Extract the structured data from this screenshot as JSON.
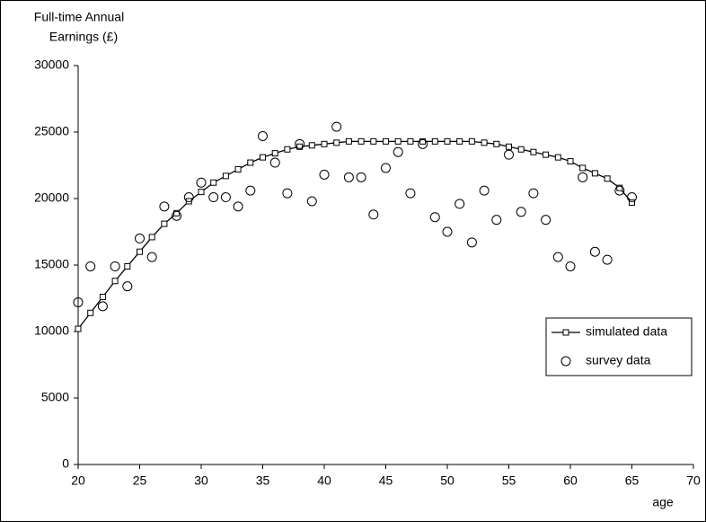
{
  "chart_data": {
    "type": "line_scatter",
    "y_label": [
      "Full-time Annual",
      "Earnings (£)"
    ],
    "x_label": "age",
    "x": [
      20,
      21,
      22,
      23,
      24,
      25,
      26,
      27,
      28,
      29,
      30,
      31,
      32,
      33,
      34,
      35,
      36,
      37,
      38,
      39,
      40,
      41,
      42,
      43,
      44,
      45,
      46,
      47,
      48,
      49,
      50,
      51,
      52,
      53,
      54,
      55,
      56,
      57,
      58,
      59,
      60,
      61,
      62,
      63,
      64,
      65
    ],
    "series": [
      {
        "name": "simulated data",
        "kind": "line",
        "marker": "square",
        "color": "#000000",
        "values": [
          10200,
          11400,
          12600,
          13800,
          14900,
          16000,
          17100,
          18100,
          18900,
          19800,
          20500,
          21200,
          21700,
          22200,
          22700,
          23100,
          23400,
          23700,
          23900,
          24000,
          24100,
          24200,
          24300,
          24300,
          24300,
          24300,
          24300,
          24300,
          24300,
          24300,
          24300,
          24300,
          24300,
          24200,
          24100,
          23900,
          23700,
          23500,
          23300,
          23100,
          22800,
          22300,
          21900,
          21500,
          20800,
          19700
        ]
      },
      {
        "name": "survey data",
        "kind": "scatter",
        "marker": "circle",
        "color": "#000000",
        "values": [
          12200,
          14900,
          11900,
          14900,
          13400,
          17000,
          15600,
          19400,
          18700,
          20100,
          21200,
          20100,
          20100,
          19400,
          20600,
          24700,
          22700,
          20400,
          24100,
          19800,
          21800,
          25400,
          21600,
          21600,
          18800,
          22300,
          23500,
          20400,
          24100,
          18600,
          17500,
          19600,
          16700,
          20600,
          18400,
          23300,
          19000,
          20400,
          18400,
          15600,
          14900,
          21600,
          16000,
          15400,
          20600,
          20100
        ]
      }
    ],
    "xlim": [
      20,
      70
    ],
    "xticks": [
      20,
      25,
      30,
      35,
      40,
      45,
      50,
      55,
      60,
      65,
      70
    ],
    "ylim": [
      0,
      30000
    ],
    "yticks": [
      0,
      5000,
      10000,
      15000,
      20000,
      25000,
      30000
    ],
    "grid": false,
    "legend": "right"
  }
}
